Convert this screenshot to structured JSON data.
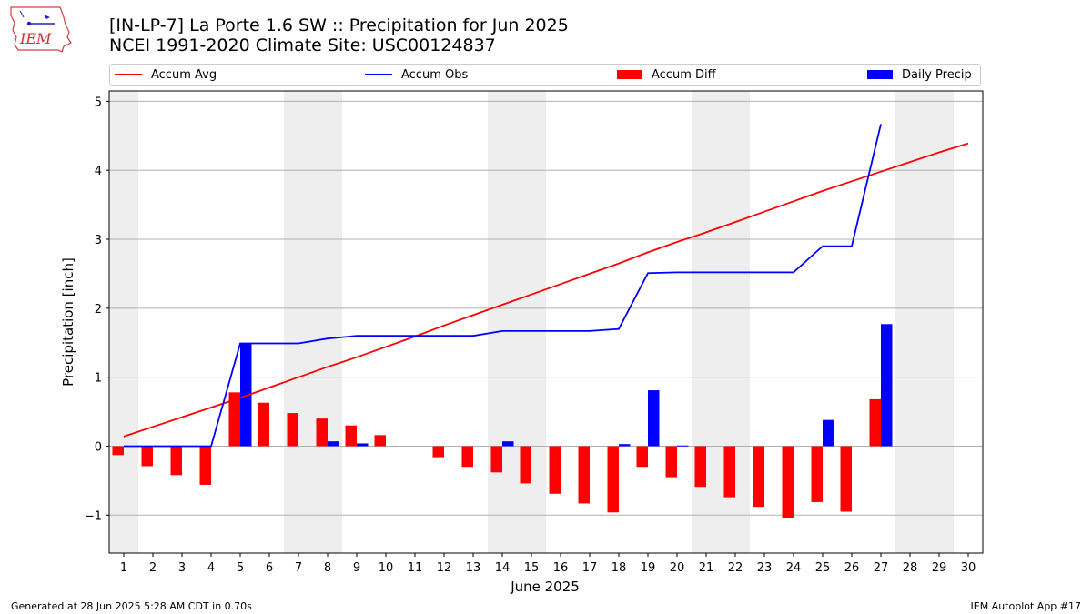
{
  "header": {
    "title_line1": "[IN-LP-7] La Porte 1.6 SW :: Precipitation for Jun 2025",
    "title_line2": "NCEI 1991-2020 Climate Site: USC00124837",
    "logo_text": "IEM"
  },
  "footer": {
    "generated": "Generated at 28 Jun 2025 5:28 AM CDT in 0.70s",
    "app": "IEM Autoplot App #17"
  },
  "legend": {
    "placement": "top",
    "items": [
      {
        "label": "Accum Avg",
        "kind": "line",
        "color": "#ff0000"
      },
      {
        "label": "Accum Obs",
        "kind": "line",
        "color": "#0000ff"
      },
      {
        "label": "Accum Diff",
        "kind": "bar",
        "color": "#ff0000"
      },
      {
        "label": "Daily Precip",
        "kind": "bar",
        "color": "#0000ff"
      }
    ]
  },
  "chart_data": {
    "type": "bar",
    "xlabel": "June 2025",
    "ylabel": "Precipitation [inch]",
    "xlim": [
      0.5,
      30.5
    ],
    "ylim": [
      -1.55,
      5.15
    ],
    "yticks": [
      -1,
      0,
      1,
      2,
      3,
      4,
      5
    ],
    "ytick_labels": [
      "−1",
      "0",
      "1",
      "2",
      "3",
      "4",
      "5"
    ],
    "grid": "horizontal",
    "weekend_shading": [
      [
        0.5,
        1.5
      ],
      [
        6.5,
        8.5
      ],
      [
        13.5,
        15.5
      ],
      [
        20.5,
        22.5
      ],
      [
        27.5,
        29.5
      ]
    ],
    "shade_color": "#eeeeee",
    "days": [
      1,
      2,
      3,
      4,
      5,
      6,
      7,
      8,
      9,
      10,
      11,
      12,
      13,
      14,
      15,
      16,
      17,
      18,
      19,
      20,
      21,
      22,
      23,
      24,
      25,
      26,
      27,
      28,
      29,
      30
    ],
    "series": [
      {
        "name": "Accum Avg",
        "kind": "line",
        "color": "#ff0000",
        "values": [
          0.14,
          0.28,
          0.42,
          0.56,
          0.7,
          0.85,
          1.0,
          1.15,
          1.29,
          1.44,
          1.59,
          1.75,
          1.9,
          2.05,
          2.2,
          2.35,
          2.5,
          2.65,
          2.81,
          2.96,
          3.1,
          3.25,
          3.4,
          3.55,
          3.7,
          3.84,
          3.98,
          4.12,
          4.26,
          4.39
        ]
      },
      {
        "name": "Accum Obs",
        "kind": "line",
        "color": "#0000ff",
        "values": [
          0.0,
          0.0,
          0.0,
          0.0,
          1.49,
          1.49,
          1.49,
          1.56,
          1.6,
          1.6,
          1.6,
          1.6,
          1.6,
          1.67,
          1.67,
          1.67,
          1.67,
          1.7,
          2.51,
          2.52,
          2.52,
          2.52,
          2.52,
          2.52,
          2.9,
          2.9,
          4.67,
          null,
          null,
          null
        ]
      },
      {
        "name": "Accum Diff",
        "kind": "bar",
        "color": "#ff0000",
        "values": [
          -0.13,
          -0.29,
          -0.42,
          -0.56,
          0.78,
          0.63,
          0.48,
          0.4,
          0.3,
          0.16,
          0.0,
          -0.16,
          -0.3,
          -0.38,
          -0.54,
          -0.69,
          -0.83,
          -0.96,
          -0.3,
          -0.45,
          -0.59,
          -0.74,
          -0.88,
          -1.04,
          -0.81,
          -0.95,
          0.68,
          null,
          null,
          null
        ]
      },
      {
        "name": "Daily Precip",
        "kind": "bar",
        "color": "#0000ff",
        "values": [
          0.0,
          0.0,
          0.0,
          0.0,
          1.49,
          0.0,
          0.0,
          0.07,
          0.04,
          0.0,
          0.0,
          0.0,
          0.0,
          0.07,
          0.0,
          0.0,
          0.0,
          0.03,
          0.81,
          0.01,
          0.0,
          0.0,
          0.0,
          0.0,
          0.38,
          0.0,
          1.77,
          null,
          null,
          null
        ]
      }
    ]
  }
}
